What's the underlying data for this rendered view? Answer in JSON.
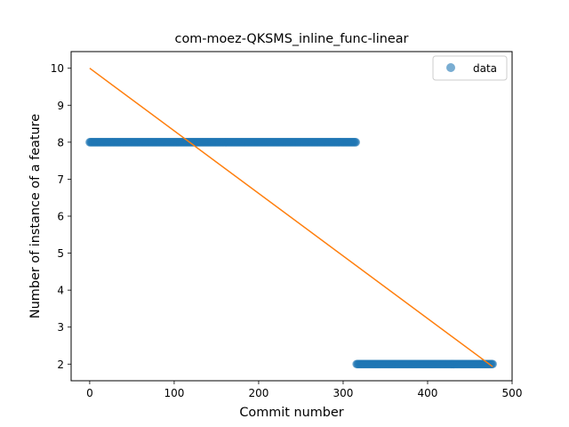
{
  "chart_data": {
    "type": "scatter",
    "title": "com-moez-QKSMS_inline_func-linear",
    "xlabel": "Commit number",
    "ylabel": "Number of instance of a feature",
    "xlim": [
      -22,
      500
    ],
    "ylim": [
      1.55,
      10.45
    ],
    "x_ticks": [
      0,
      100,
      200,
      300,
      400,
      500
    ],
    "y_ticks": [
      2,
      3,
      4,
      5,
      6,
      7,
      8,
      9,
      10
    ],
    "grid": false,
    "legend": {
      "position": "top-right",
      "entries": [
        "data"
      ]
    },
    "series": [
      {
        "name": "data",
        "kind": "points",
        "color": "#1f77b4",
        "segments": [
          {
            "x_start": 0,
            "x_end": 315,
            "step": 1,
            "y": 8
          },
          {
            "x_start": 316,
            "x_end": 477,
            "step": 1,
            "y": 2
          }
        ]
      },
      {
        "kind": "line",
        "color": "#ff7f0e",
        "x": [
          0,
          477
        ],
        "y": [
          10,
          1.93
        ]
      }
    ]
  }
}
